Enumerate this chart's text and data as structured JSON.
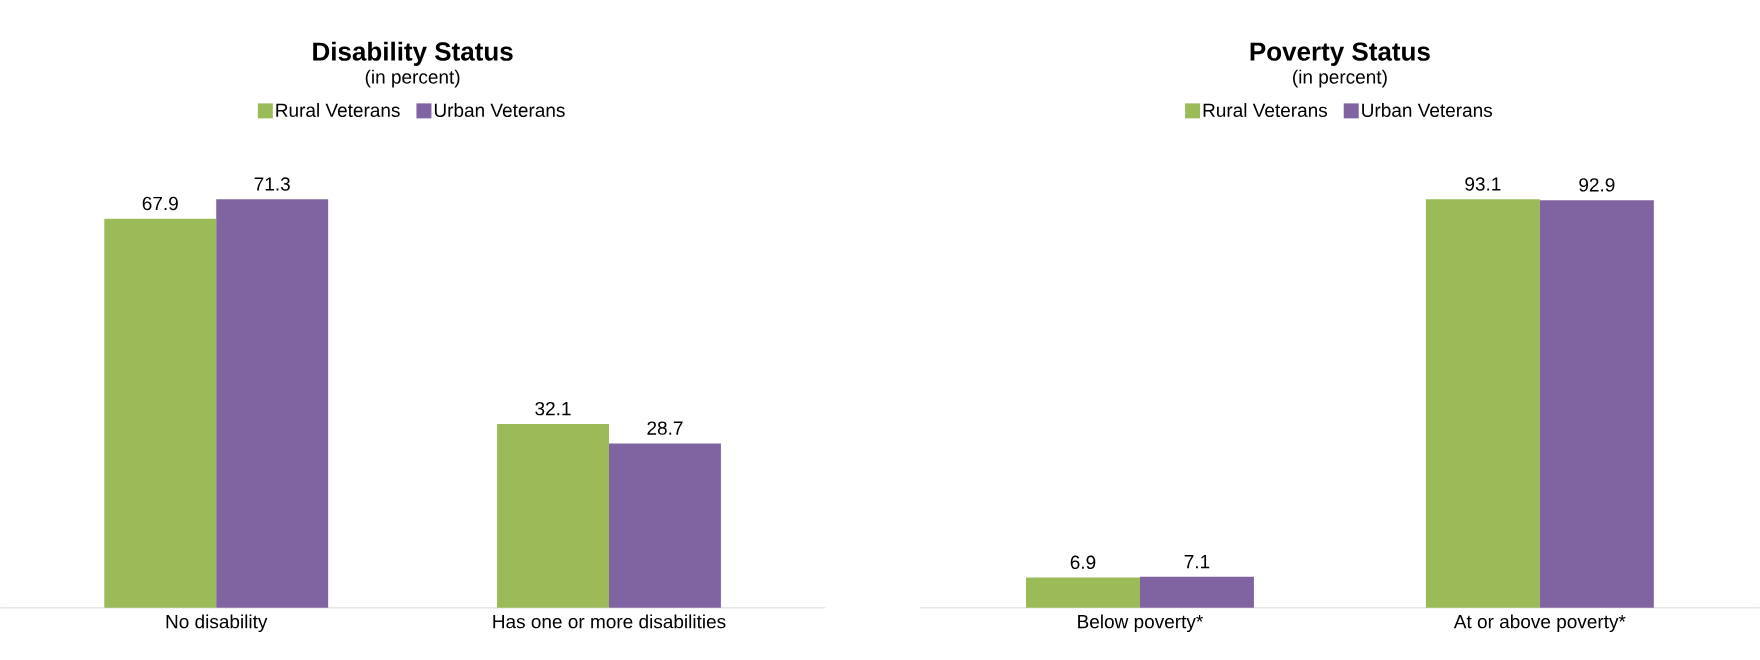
{
  "chart_data": [
    {
      "type": "bar",
      "title": "Disability Status",
      "subtitle": "(in percent)",
      "categories": [
        "No disability",
        "Has one or more disabilities"
      ],
      "series": [
        {
          "name": "Rural Veterans",
          "color": "#9bbb59",
          "values": [
            67.9,
            32.1
          ]
        },
        {
          "name": "Urban Veterans",
          "color": "#8064a2",
          "values": [
            71.3,
            28.7
          ]
        }
      ],
      "data_labels": true,
      "legend": "top",
      "tick_labels": "x"
    },
    {
      "type": "bar",
      "title": "Poverty Status",
      "subtitle": "(in percent)",
      "categories": [
        "Below poverty*",
        "At or above poverty*"
      ],
      "series": [
        {
          "name": "Rural Veterans",
          "color": "#9bbb59",
          "values": [
            6.9,
            93.1
          ]
        },
        {
          "name": "Urban Veterans",
          "color": "#8064a2",
          "values": [
            7.1,
            92.9
          ]
        }
      ],
      "data_labels": true,
      "legend": "top",
      "tick_labels": "x"
    }
  ]
}
